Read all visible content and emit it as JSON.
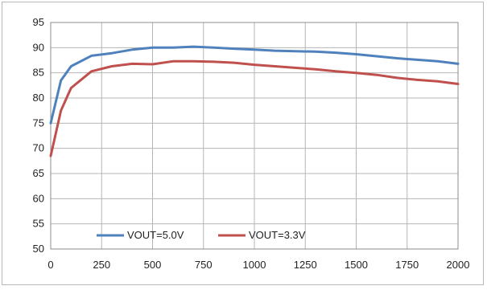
{
  "chart_data": {
    "type": "line",
    "title": "",
    "xlabel": "",
    "ylabel": "",
    "xlim": [
      0,
      2000
    ],
    "ylim": [
      50,
      95
    ],
    "xticks": [
      0,
      250,
      500,
      750,
      1000,
      1250,
      1500,
      1750,
      2000
    ],
    "yticks": [
      50,
      55,
      60,
      65,
      70,
      75,
      80,
      85,
      90,
      95
    ],
    "grid": "horizontal and vertical",
    "legend": "bottom-inside",
    "series": [
      {
        "name": "VOUT=5.0V",
        "color": "#4f81bd",
        "x": [
          0,
          50,
          100,
          200,
          300,
          400,
          500,
          600,
          700,
          800,
          900,
          1000,
          1100,
          1200,
          1300,
          1400,
          1500,
          1600,
          1700,
          1800,
          1900,
          2000
        ],
        "y": [
          75,
          83.5,
          86.3,
          88.4,
          88.9,
          89.6,
          90.0,
          90.0,
          90.2,
          90.0,
          89.8,
          89.6,
          89.4,
          89.3,
          89.2,
          89.0,
          88.7,
          88.3,
          87.9,
          87.6,
          87.3,
          86.8
        ]
      },
      {
        "name": "VOUT=3.3V",
        "color": "#c0504d",
        "x": [
          0,
          50,
          100,
          200,
          300,
          400,
          500,
          600,
          700,
          800,
          900,
          1000,
          1100,
          1200,
          1300,
          1400,
          1500,
          1600,
          1700,
          1800,
          1900,
          2000
        ],
        "y": [
          68.5,
          77.5,
          82.0,
          85.3,
          86.3,
          86.8,
          86.7,
          87.3,
          87.3,
          87.2,
          87.0,
          86.6,
          86.3,
          86.0,
          85.7,
          85.3,
          85.0,
          84.6,
          84.0,
          83.6,
          83.3,
          82.8
        ]
      }
    ]
  }
}
